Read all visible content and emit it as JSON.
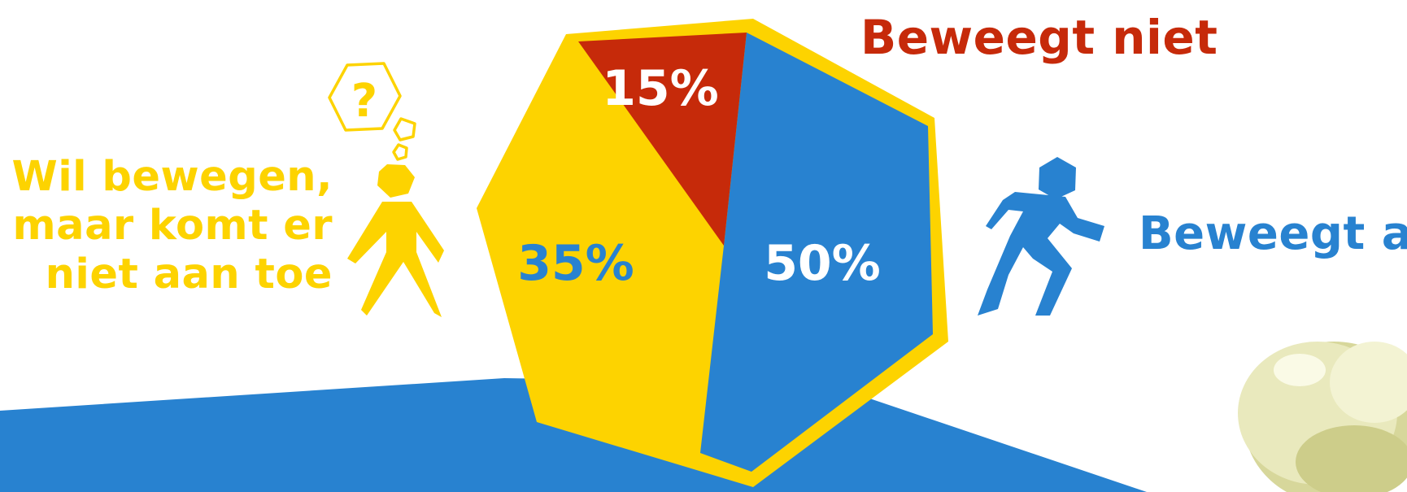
{
  "chart_data": {
    "type": "pie",
    "title": "",
    "slices": [
      {
        "label": "Beweegt niet",
        "value": 15,
        "value_label": "15%",
        "color": "#c62a0a"
      },
      {
        "label": "Beweegt al",
        "value": 50,
        "value_label": "50%",
        "color": "#2882d0"
      },
      {
        "label": "Wil bewegen, maar komt er niet aan toe",
        "value": 35,
        "value_label": "35%",
        "color": "#fdd300"
      }
    ],
    "outline_color": "#fdd300",
    "value_label_colors": {
      "15%": "#ffffff",
      "50%": "#ffffff",
      "35%": "#2882d0"
    }
  },
  "labels": {
    "beweegt_niet": "Beweegt niet",
    "beweegt_al": "Beweegt al",
    "wil_bewegen_lines": [
      "Wil bewegen,",
      "maar komt er",
      "niet aan toe"
    ]
  },
  "icons": {
    "thinking_person": "thinking-person-icon",
    "thought_bubble": "question-thought-bubble-icon",
    "running_person": "running-person-icon"
  },
  "colors": {
    "yellow": "#fdd300",
    "blue": "#2882d0",
    "red": "#c62a0a",
    "background": "#ffffff"
  }
}
